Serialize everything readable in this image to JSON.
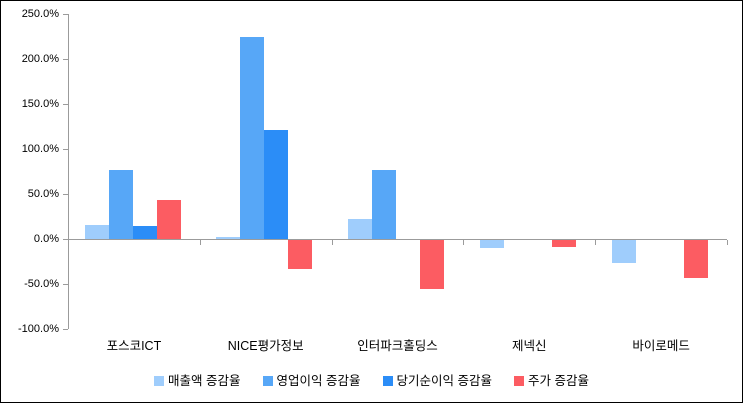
{
  "chart_data": {
    "type": "bar",
    "title": "",
    "xlabel": "",
    "ylabel": "",
    "categories": [
      "포스코ICT",
      "NICE평가정보",
      "인터파크홀딩스",
      "제넥신",
      "바이로메드"
    ],
    "series": [
      {
        "name": "매출액 증감율",
        "color": "#9fcdfc",
        "values": [
          16,
          2,
          22,
          -9,
          -25
        ]
      },
      {
        "name": "영업이익 증감율",
        "color": "#57a7f7",
        "values": [
          77,
          224,
          77,
          0,
          0
        ]
      },
      {
        "name": "당기순이익 증감율",
        "color": "#2b8df7",
        "values": [
          15,
          121,
          0,
          0,
          0
        ]
      },
      {
        "name": "주가 증감율",
        "color": "#fc5c62",
        "values": [
          43,
          -32,
          -54,
          -8,
          -42
        ]
      }
    ],
    "ylim": [
      -100,
      250
    ],
    "ytick_step": 50,
    "ytick_labels": [
      "250.0%",
      "200.0%",
      "150.0%",
      "100.0%",
      "50.0%",
      "0.0%",
      "-50.0%",
      "-100.0%"
    ],
    "ytick_values": [
      250,
      200,
      150,
      100,
      50,
      0,
      -50,
      -100
    ],
    "grid": false,
    "legend_position": "bottom",
    "colors": {
      "axis": "#9b9b9b",
      "text": "#000000",
      "background": "#ffffff",
      "border": "#000000"
    }
  }
}
